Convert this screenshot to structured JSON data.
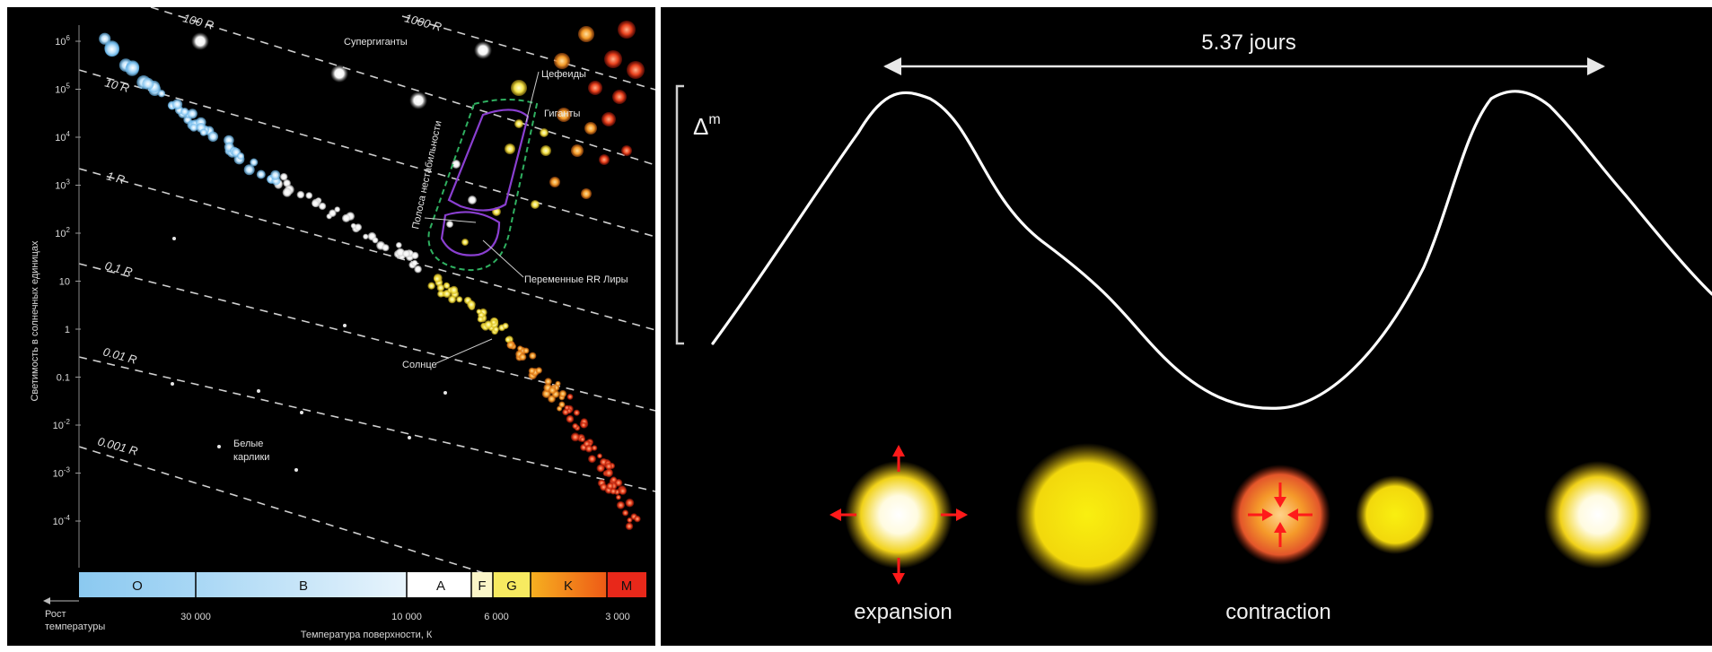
{
  "hr_diagram": {
    "y_ticks": [
      {
        "base": "10",
        "exp": "6"
      },
      {
        "base": "10",
        "exp": "5"
      },
      {
        "base": "10",
        "exp": "4"
      },
      {
        "base": "10",
        "exp": "3"
      },
      {
        "base": "10",
        "exp": "2"
      },
      {
        "base": "10",
        "exp": ""
      },
      {
        "base": "1",
        "exp": ""
      },
      {
        "base": "0.1",
        "exp": ""
      },
      {
        "base": "10",
        "exp": "-2"
      },
      {
        "base": "10",
        "exp": "-3"
      },
      {
        "base": "10",
        "exp": "-4"
      }
    ],
    "y_axis_label": "Светимость в солнечных единицах",
    "radius_lines": [
      "1000 R",
      "100 R",
      "10 R",
      "1 R",
      "0.1 R",
      "0.01 R",
      "0.001 R"
    ],
    "region_labels": {
      "supergiants": "Супергиганты",
      "giants": "Гиганты",
      "cepheids": "Цефеиды",
      "instability_strip": "Полоса нестабильности",
      "rr_lyrae": "Переменные RR Лиры",
      "sun": "Солнце",
      "white_dwarfs_1": "Белые",
      "white_dwarfs_2": "карлики"
    },
    "spectral_classes": [
      "O",
      "B",
      "A",
      "F",
      "G",
      "K",
      "M"
    ],
    "temperature_ticks": [
      "30 000",
      "10 000",
      "6 000",
      "3 000"
    ],
    "temp_growth_1": "Рост",
    "temp_growth_2": "температуры",
    "x_axis_label": "Температура поверхности, К",
    "colors": {
      "hot": "#7fc4f0",
      "white": "#ffffff",
      "yellow": "#f0e030",
      "red": "#e02010",
      "strip": "#8a3fd0",
      "strip_outer": "#2fb060"
    }
  },
  "cepheid_cycle": {
    "period_label": "5.37 jours",
    "magnitude_label": "Δ",
    "magnitude_exp": "m",
    "expansion_label": "expansion",
    "contraction_label": "contraction",
    "arrow_color": "#ff1a1a"
  }
}
